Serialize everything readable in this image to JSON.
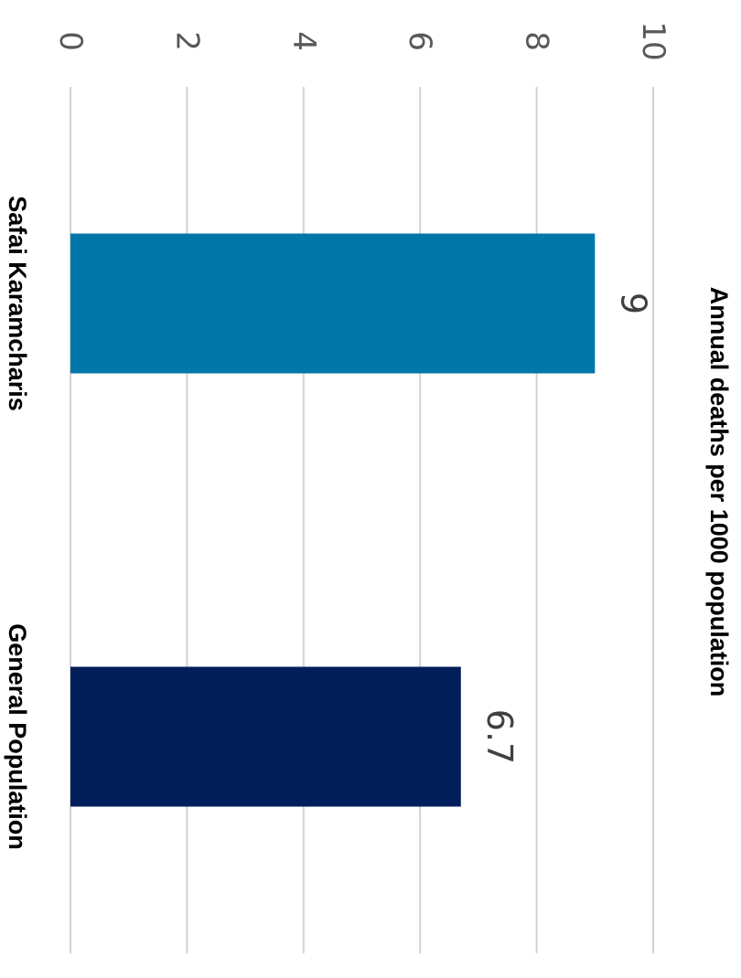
{
  "chart_data": {
    "type": "bar",
    "orientation": "vertical",
    "title": "Annual deaths per 1000 population",
    "xlabel": "",
    "ylabel": "",
    "categories": [
      "Safai Karamcharis",
      "General Population"
    ],
    "values": [
      9,
      6.7
    ],
    "data_labels": [
      "9",
      "6.7"
    ],
    "ylim": [
      0,
      10
    ],
    "yticks": [
      0,
      2,
      4,
      6,
      8,
      10
    ],
    "ytick_labels": [
      "0",
      "2",
      "4",
      "6",
      "8",
      "10"
    ],
    "grid": true,
    "legend": "none",
    "colors": [
      "#0077a8",
      "#001e5a"
    ],
    "rotation": "rotated 90 degrees clockwise"
  }
}
